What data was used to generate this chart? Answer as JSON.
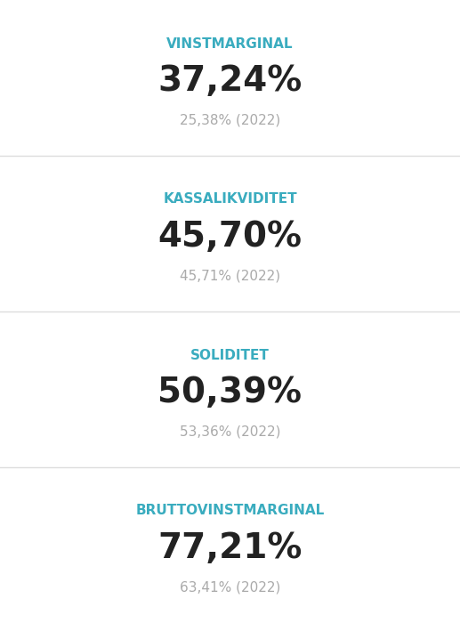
{
  "cards": [
    {
      "label": "VINSTMARGINAL",
      "value": "37,24%",
      "prev": "25,38% (2022)"
    },
    {
      "label": "KASSALIKVIDITET",
      "value": "45,70%",
      "prev": "45,71% (2022)"
    },
    {
      "label": "SOLIDITET",
      "value": "50,39%",
      "prev": "53,36% (2022)"
    },
    {
      "label": "BRUTTOVINSTMARGINAL",
      "value": "77,21%",
      "prev": "63,41% (2022)"
    }
  ],
  "bg_color": "#f7f8fa",
  "card_bg": "#ffffff",
  "label_color": "#3aacbf",
  "value_color": "#222222",
  "prev_color": "#aaaaaa",
  "separator_color": "#dddddd",
  "label_fontsize": 11,
  "value_fontsize": 28,
  "prev_fontsize": 11
}
